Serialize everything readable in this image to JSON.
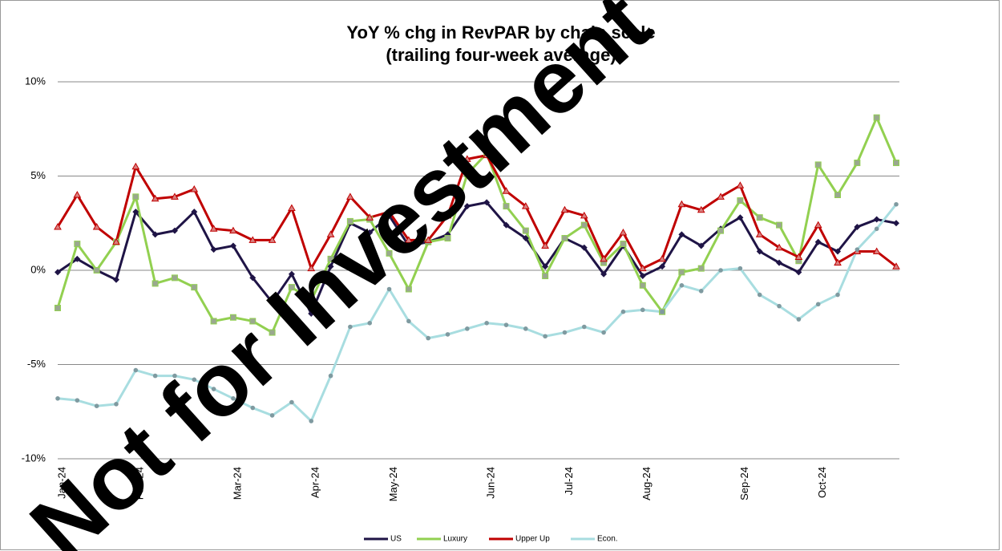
{
  "chart_data": {
    "type": "line",
    "title": "YoY % chg in RevPAR by chain scale",
    "subtitle": "(trailing four-week average)",
    "watermark": "Not for Investment",
    "categories": [
      "Jan-24",
      null,
      null,
      null,
      "Feb-24",
      null,
      null,
      null,
      null,
      "Mar-24",
      null,
      null,
      null,
      "Apr-24",
      null,
      null,
      null,
      "May-24",
      null,
      null,
      null,
      null,
      "Jun-24",
      null,
      null,
      null,
      "Jul-24",
      null,
      null,
      null,
      "Aug-24",
      null,
      null,
      null,
      null,
      "Sep-24",
      null,
      null,
      null,
      "Oct-24",
      null,
      null,
      null,
      null
    ],
    "series": [
      {
        "name": "US",
        "color": "#1f1446",
        "marker": "diamond",
        "values": [
          -0.1,
          0.6,
          0.0,
          -0.5,
          3.1,
          1.9,
          2.1,
          3.1,
          1.1,
          1.3,
          -0.4,
          -1.7,
          -0.2,
          -2.3,
          0.2,
          2.5,
          2.0,
          2.9,
          1.3,
          1.5,
          1.9,
          3.4,
          3.6,
          2.4,
          1.7,
          0.2,
          1.7,
          1.2,
          -0.2,
          1.3,
          -0.3,
          0.2,
          1.9,
          1.3,
          2.2,
          2.8,
          1.0,
          0.4,
          -0.1,
          1.5,
          1.0,
          2.3,
          2.7,
          2.5
        ]
      },
      {
        "name": "Luxury",
        "color": "#92d050",
        "marker": "square",
        "values": [
          -2.0,
          1.4,
          0.0,
          1.5,
          3.9,
          -0.7,
          -0.4,
          -0.9,
          -2.7,
          -2.5,
          -2.7,
          -3.3,
          -0.9,
          -1.6,
          0.6,
          2.6,
          2.7,
          0.9,
          -1.0,
          1.5,
          1.7,
          5.1,
          6.2,
          3.4,
          2.1,
          -0.3,
          1.7,
          2.4,
          0.4,
          1.4,
          -0.8,
          -2.2,
          -0.1,
          0.1,
          2.1,
          3.7,
          2.8,
          2.4,
          0.5,
          5.6,
          4.0,
          5.7,
          8.1,
          5.7
        ]
      },
      {
        "name": "Upper Up",
        "color": "#c00000",
        "marker": "triangle",
        "values": [
          2.3,
          4.0,
          2.3,
          1.5,
          5.5,
          3.8,
          3.9,
          4.3,
          2.2,
          2.1,
          1.6,
          1.6,
          3.3,
          0.1,
          1.9,
          3.9,
          2.8,
          3.1,
          1.6,
          1.6,
          2.9,
          5.9,
          6.1,
          4.2,
          3.4,
          1.3,
          3.2,
          2.9,
          0.6,
          2.0,
          0.1,
          0.6,
          3.5,
          3.2,
          3.9,
          4.5,
          1.9,
          1.2,
          0.7,
          2.4,
          0.4,
          1.0,
          1.0,
          0.2
        ]
      },
      {
        "name": "Econ.",
        "color": "#a8dde0",
        "marker": "circle",
        "values": [
          -6.8,
          -6.9,
          -7.2,
          -7.1,
          -5.3,
          -5.6,
          -5.6,
          -5.8,
          -6.3,
          -6.8,
          -7.3,
          -7.7,
          -7.0,
          -8.0,
          -5.6,
          -3.0,
          -2.8,
          -1.0,
          -2.7,
          -3.6,
          -3.4,
          -3.1,
          -2.8,
          -2.9,
          -3.1,
          -3.5,
          -3.3,
          -3.0,
          -3.3,
          -2.2,
          -2.1,
          -2.2,
          -0.8,
          -1.1,
          0.0,
          0.1,
          -1.3,
          -1.9,
          -2.6,
          -1.8,
          -1.3,
          1.1,
          2.2,
          3.5
        ]
      }
    ],
    "ylim": [
      -10,
      10
    ],
    "yticks": [
      {
        "value": -10,
        "label": "-10%"
      },
      {
        "value": -5,
        "label": "-5%"
      },
      {
        "value": 0,
        "label": "0%"
      },
      {
        "value": 5,
        "label": "5%"
      },
      {
        "value": 10,
        "label": "10%"
      }
    ],
    "grid": true,
    "legend": "bottom"
  }
}
